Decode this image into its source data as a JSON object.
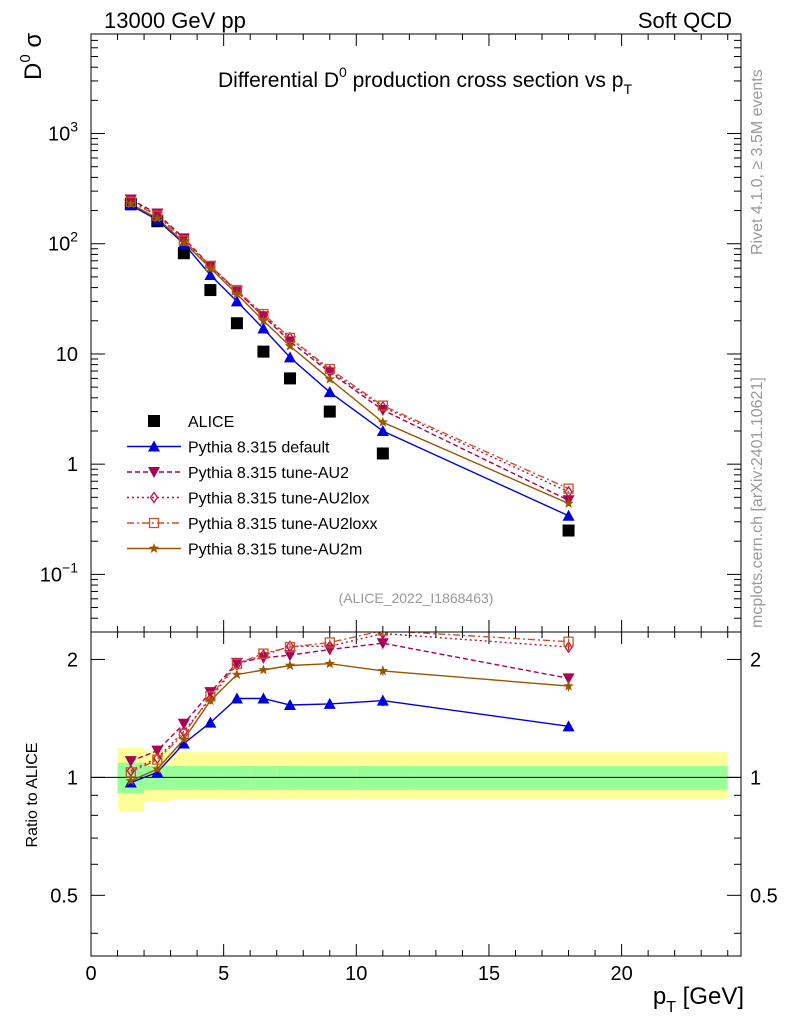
{
  "header": {
    "left": "13000 GeV pp",
    "right": "Soft QCD",
    "side_top": "Rivet 4.1.0, ≥ 3.5M events",
    "side_bottom": "mcplots.cern.ch [arXiv:2401.10621]"
  },
  "chart_data": {
    "type": "scatter",
    "title": "Differential D0 production cross section vs pT",
    "title_parts": {
      "a": "Differential D",
      "a_sup": "0",
      "b": " production cross section vs p",
      "b_sub": "T"
    },
    "ylabel_parts": {
      "base": "D",
      "sup": "0",
      "tail": " σ"
    },
    "xlabel_parts": {
      "base": "p",
      "sub": "T",
      "tail": " [GeV]"
    },
    "ratio_ylabel": "Ratio to ALICE",
    "watermark": "(ALICE_2022_I1868463)",
    "xlim": [
      0,
      24.5
    ],
    "ylim": [
      0.03,
      8000
    ],
    "ratio_ylim": [
      0.35,
      2.35
    ],
    "yscale": "log",
    "x_ticks": [
      0,
      5,
      10,
      15,
      20
    ],
    "x_tick_labels": [
      "0",
      "5",
      "10",
      "15",
      "20"
    ],
    "y_ticks": [
      {
        "value": 0.1,
        "base": "10",
        "sup": "−1"
      },
      {
        "value": 1,
        "base": "1",
        "sup": ""
      },
      {
        "value": 10,
        "base": "10",
        "sup": ""
      },
      {
        "value": 100,
        "base": "10",
        "sup": "2"
      },
      {
        "value": 1000,
        "base": "10",
        "sup": "3"
      }
    ],
    "ratio_ticks": [
      {
        "value": 0.5,
        "label": "0.5"
      },
      {
        "value": 1,
        "label": "1"
      },
      {
        "value": 2,
        "label": "2"
      }
    ],
    "x": [
      1.5,
      2.5,
      3.5,
      4.5,
      5.5,
      6.5,
      7.5,
      9,
      11,
      18
    ],
    "series": [
      {
        "name": "ALICE",
        "color": "#000000",
        "marker": "square",
        "line": "none",
        "values": [
          230,
          160,
          82,
          38,
          19,
          10.5,
          6,
          3,
          1.25,
          0.25
        ],
        "ratio": [
          1,
          1,
          1,
          1,
          1,
          1,
          1,
          1,
          1,
          1
        ]
      },
      {
        "name": "Pythia 8.315 default",
        "color": "#0000dd",
        "marker": "triangle-up",
        "line": "solid",
        "values": [
          223,
          165,
          100,
          52,
          30,
          17,
          9.3,
          4.5,
          2.0,
          0.34
        ],
        "ratio": [
          0.97,
          1.03,
          1.22,
          1.38,
          1.59,
          1.59,
          1.53,
          1.54,
          1.57,
          1.35
        ],
        "ratio_err": [
          0,
          0,
          0,
          0,
          0,
          0.02,
          0.03,
          0.03,
          0.05,
          0.04
        ]
      },
      {
        "name": "Pythia 8.315 tune-AU2",
        "color": "#aa0055",
        "marker": "triangle-down",
        "line": "dashed",
        "values": [
          252,
          188,
          112,
          63,
          37,
          22,
          13,
          6.8,
          3.1,
          0.47
        ],
        "ratio": [
          1.1,
          1.17,
          1.37,
          1.65,
          1.96,
          2.02,
          2.05,
          2.12,
          2.2,
          1.79
        ],
        "ratio_err": [
          0,
          0,
          0,
          0,
          0,
          0.02,
          0.03,
          0.04,
          0.05,
          0.04
        ]
      },
      {
        "name": "Pythia 8.315 tune-AU2lox",
        "color": "#bb1144",
        "marker": "diamond",
        "line": "dotted",
        "values": [
          245,
          183,
          108,
          62,
          37,
          22,
          14,
          7.0,
          3.3,
          0.56
        ],
        "ratio": [
          1.04,
          1.12,
          1.31,
          1.59,
          1.94,
          2.05,
          2.16,
          2.16,
          2.33,
          2.15
        ],
        "ratio_err": [
          0,
          0,
          0,
          0,
          0,
          0.02,
          0.03,
          0.04,
          0.05,
          0.04
        ]
      },
      {
        "name": "Pythia 8.315 tune-AU2loxx",
        "color": "#c8552a",
        "marker": "open-square",
        "line": "dashdot",
        "values": [
          240,
          180,
          107,
          63,
          38,
          23,
          14,
          7.3,
          3.4,
          0.6
        ],
        "ratio": [
          1.03,
          1.11,
          1.29,
          1.61,
          1.95,
          2.07,
          2.15,
          2.21,
          2.37,
          2.22
        ],
        "ratio_err": [
          0,
          0,
          0,
          0,
          0,
          0.02,
          0.03,
          0.04,
          0.05,
          0.04
        ]
      },
      {
        "name": "Pythia 8.315 tune-AU2m",
        "color": "#995500",
        "marker": "star",
        "line": "solid",
        "values": [
          230,
          170,
          103,
          60,
          35,
          20,
          11.8,
          5.9,
          2.4,
          0.44
        ],
        "ratio": [
          0.98,
          1.05,
          1.25,
          1.57,
          1.83,
          1.88,
          1.93,
          1.95,
          1.87,
          1.71
        ],
        "ratio_err": [
          0,
          0,
          0,
          0,
          0,
          0.02,
          0.03,
          0.03,
          0.05,
          0.05
        ]
      }
    ],
    "error_bands": {
      "inner_color": "#99ff99",
      "outer_color": "#ffff99",
      "edges": [
        1.0,
        2.0,
        3.0,
        4.0,
        5.0,
        6.0,
        7.0,
        8.0,
        10.0,
        12.0,
        24.0
      ],
      "inner_lo": [
        0.91,
        0.93,
        0.93,
        0.93,
        0.93,
        0.93,
        0.93,
        0.93,
        0.93,
        0.93
      ],
      "inner_hi": [
        1.09,
        1.07,
        1.07,
        1.07,
        1.07,
        1.07,
        1.07,
        1.07,
        1.07,
        1.07
      ],
      "outer_lo": [
        0.82,
        0.87,
        0.88,
        0.88,
        0.88,
        0.88,
        0.88,
        0.88,
        0.88,
        0.88
      ],
      "outer_hi": [
        1.19,
        1.17,
        1.16,
        1.16,
        1.16,
        1.16,
        1.16,
        1.16,
        1.16,
        1.16
      ]
    }
  }
}
